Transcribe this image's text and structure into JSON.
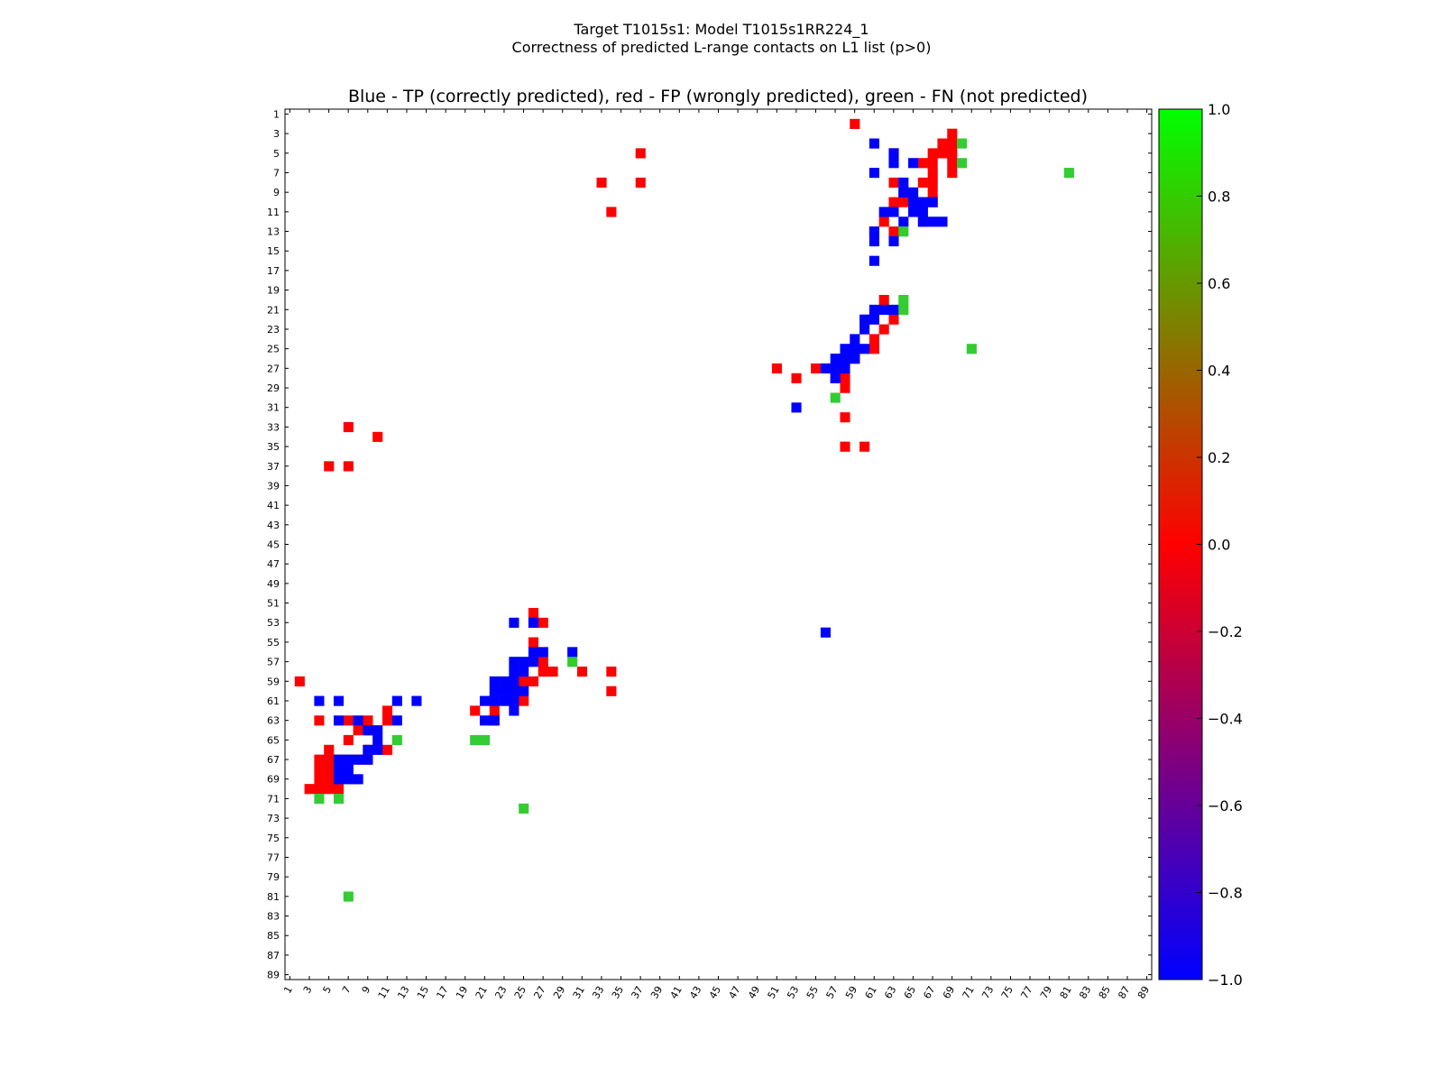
{
  "chart_data": {
    "type": "heatmap",
    "title": "Target T1015s1: Model T1015s1RR224_1",
    "subtitle": "Correctness of predicted L-range contacts on L1 list (p>0)",
    "plot_title": "Blue - TP (correctly predicted), red - FP (wrongly predicted), green - FN (not predicted)",
    "xlim": [
      1,
      89
    ],
    "ylim": [
      1,
      89
    ],
    "x_ticks": [
      "1",
      "3",
      "5",
      "7",
      "9",
      "11",
      "13",
      "15",
      "17",
      "19",
      "21",
      "23",
      "25",
      "27",
      "29",
      "31",
      "33",
      "35",
      "37",
      "39",
      "41",
      "43",
      "45",
      "47",
      "49",
      "51",
      "53",
      "55",
      "57",
      "59",
      "61",
      "63",
      "65",
      "67",
      "69",
      "71",
      "73",
      "75",
      "77",
      "79",
      "81",
      "83",
      "85",
      "87",
      "89"
    ],
    "y_ticks": [
      "1",
      "3",
      "5",
      "7",
      "9",
      "11",
      "13",
      "15",
      "17",
      "19",
      "21",
      "23",
      "25",
      "27",
      "29",
      "31",
      "33",
      "35",
      "37",
      "39",
      "41",
      "43",
      "45",
      "47",
      "49",
      "51",
      "53",
      "55",
      "57",
      "59",
      "61",
      "63",
      "65",
      "67",
      "69",
      "71",
      "73",
      "75",
      "77",
      "79",
      "81",
      "83",
      "85",
      "87",
      "89"
    ],
    "colorbar": {
      "ticks": [
        "1.0",
        "0.8",
        "0.6",
        "0.4",
        "0.2",
        "0.0",
        "−0.2",
        "−0.4",
        "−0.6",
        "−0.8",
        "−1.0"
      ],
      "range": [
        -1.0,
        1.0
      ],
      "colors": {
        "min": "#0000ff",
        "mid": "#ff0000",
        "max": "#00ff00"
      }
    },
    "category_colors": {
      "TP": "#0000ff",
      "FP": "#ff0000",
      "FN": "#33cc33"
    },
    "cells": {
      "TP": [
        [
          61,
          4
        ],
        [
          63,
          5
        ],
        [
          63,
          6
        ],
        [
          65,
          6
        ],
        [
          61,
          7
        ],
        [
          64,
          8
        ],
        [
          64,
          9
        ],
        [
          65,
          9
        ],
        [
          65,
          10
        ],
        [
          66,
          10
        ],
        [
          67,
          10
        ],
        [
          62,
          11
        ],
        [
          63,
          11
        ],
        [
          65,
          11
        ],
        [
          66,
          11
        ],
        [
          64,
          12
        ],
        [
          66,
          12
        ],
        [
          67,
          12
        ],
        [
          68,
          12
        ],
        [
          61,
          13
        ],
        [
          61,
          14
        ],
        [
          63,
          14
        ],
        [
          61,
          16
        ],
        [
          61,
          21
        ],
        [
          62,
          21
        ],
        [
          63,
          21
        ],
        [
          60,
          22
        ],
        [
          61,
          22
        ],
        [
          60,
          23
        ],
        [
          59,
          24
        ],
        [
          58,
          25
        ],
        [
          59,
          25
        ],
        [
          60,
          25
        ],
        [
          57,
          26
        ],
        [
          58,
          26
        ],
        [
          59,
          26
        ],
        [
          56,
          27
        ],
        [
          57,
          27
        ],
        [
          58,
          27
        ],
        [
          57,
          28
        ],
        [
          53,
          31
        ],
        [
          26,
          53
        ],
        [
          56,
          54
        ],
        [
          4,
          61
        ],
        [
          6,
          61
        ],
        [
          12,
          61
        ],
        [
          14,
          61
        ],
        [
          6,
          63
        ],
        [
          8,
          63
        ],
        [
          12,
          63
        ],
        [
          9,
          64
        ],
        [
          10,
          64
        ],
        [
          10,
          65
        ],
        [
          9,
          66
        ],
        [
          10,
          66
        ],
        [
          6,
          67
        ],
        [
          7,
          67
        ],
        [
          8,
          67
        ],
        [
          9,
          67
        ],
        [
          6,
          68
        ],
        [
          7,
          68
        ],
        [
          6,
          69
        ],
        [
          7,
          69
        ],
        [
          8,
          69
        ],
        [
          21,
          61
        ],
        [
          22,
          61
        ],
        [
          23,
          61
        ],
        [
          24,
          61
        ],
        [
          22,
          60
        ],
        [
          23,
          60
        ],
        [
          24,
          60
        ],
        [
          25,
          60
        ],
        [
          22,
          59
        ],
        [
          23,
          59
        ],
        [
          24,
          59
        ],
        [
          24,
          58
        ],
        [
          25,
          58
        ],
        [
          24,
          57
        ],
        [
          25,
          57
        ],
        [
          26,
          57
        ],
        [
          26,
          56
        ],
        [
          27,
          56
        ],
        [
          30,
          56
        ],
        [
          24,
          53
        ],
        [
          22,
          63
        ],
        [
          21,
          63
        ],
        [
          24,
          62
        ],
        [
          26,
          53
        ]
      ],
      "FP": [
        [
          59,
          2
        ],
        [
          69,
          3
        ],
        [
          68,
          4
        ],
        [
          69,
          4
        ],
        [
          63,
          5
        ],
        [
          67,
          5
        ],
        [
          68,
          5
        ],
        [
          69,
          5
        ],
        [
          66,
          6
        ],
        [
          67,
          6
        ],
        [
          69,
          6
        ],
        [
          67,
          7
        ],
        [
          69,
          7
        ],
        [
          63,
          8
        ],
        [
          66,
          8
        ],
        [
          67,
          8
        ],
        [
          64,
          9
        ],
        [
          67,
          9
        ],
        [
          63,
          10
        ],
        [
          64,
          10
        ],
        [
          66,
          10
        ],
        [
          67,
          10
        ],
        [
          62,
          12
        ],
        [
          66,
          12
        ],
        [
          61,
          13
        ],
        [
          63,
          13
        ],
        [
          37,
          5
        ],
        [
          33,
          8
        ],
        [
          37,
          8
        ],
        [
          34,
          11
        ],
        [
          62,
          20
        ],
        [
          63,
          22
        ],
        [
          62,
          23
        ],
        [
          61,
          24
        ],
        [
          61,
          25
        ],
        [
          59,
          26
        ],
        [
          51,
          27
        ],
        [
          55,
          27
        ],
        [
          53,
          28
        ],
        [
          57,
          28
        ],
        [
          58,
          28
        ],
        [
          59,
          26
        ],
        [
          58,
          29
        ],
        [
          58,
          32
        ],
        [
          58,
          35
        ],
        [
          60,
          35
        ],
        [
          7,
          33
        ],
        [
          10,
          34
        ],
        [
          5,
          37
        ],
        [
          7,
          37
        ],
        [
          2,
          59
        ],
        [
          11,
          62
        ],
        [
          4,
          63
        ],
        [
          7,
          63
        ],
        [
          9,
          63
        ],
        [
          11,
          63
        ],
        [
          8,
          64
        ],
        [
          9,
          64
        ],
        [
          7,
          65
        ],
        [
          5,
          66
        ],
        [
          9,
          66
        ],
        [
          11,
          66
        ],
        [
          4,
          67
        ],
        [
          5,
          67
        ],
        [
          6,
          67
        ],
        [
          7,
          67
        ],
        [
          8,
          67
        ],
        [
          9,
          67
        ],
        [
          4,
          68
        ],
        [
          5,
          68
        ],
        [
          4,
          69
        ],
        [
          5,
          69
        ],
        [
          3,
          70
        ],
        [
          4,
          70
        ],
        [
          5,
          70
        ],
        [
          6,
          70
        ],
        [
          26,
          52
        ],
        [
          27,
          53
        ],
        [
          26,
          55
        ],
        [
          27,
          57
        ],
        [
          27,
          58
        ],
        [
          28,
          58
        ],
        [
          31,
          58
        ],
        [
          34,
          58
        ],
        [
          26,
          59
        ],
        [
          25,
          59
        ],
        [
          34,
          60
        ],
        [
          25,
          61
        ],
        [
          24,
          61
        ],
        [
          20,
          62
        ],
        [
          22,
          62
        ],
        [
          22,
          63
        ]
      ],
      "FN": [
        [
          70,
          4
        ],
        [
          70,
          6
        ],
        [
          81,
          7
        ],
        [
          64,
          13
        ],
        [
          64,
          20
        ],
        [
          64,
          21
        ],
        [
          57,
          30
        ],
        [
          71,
          25
        ],
        [
          30,
          57
        ],
        [
          12,
          65
        ],
        [
          20,
          65
        ],
        [
          21,
          65
        ],
        [
          4,
          71
        ],
        [
          6,
          71
        ],
        [
          25,
          72
        ],
        [
          7,
          81
        ]
      ]
    }
  }
}
